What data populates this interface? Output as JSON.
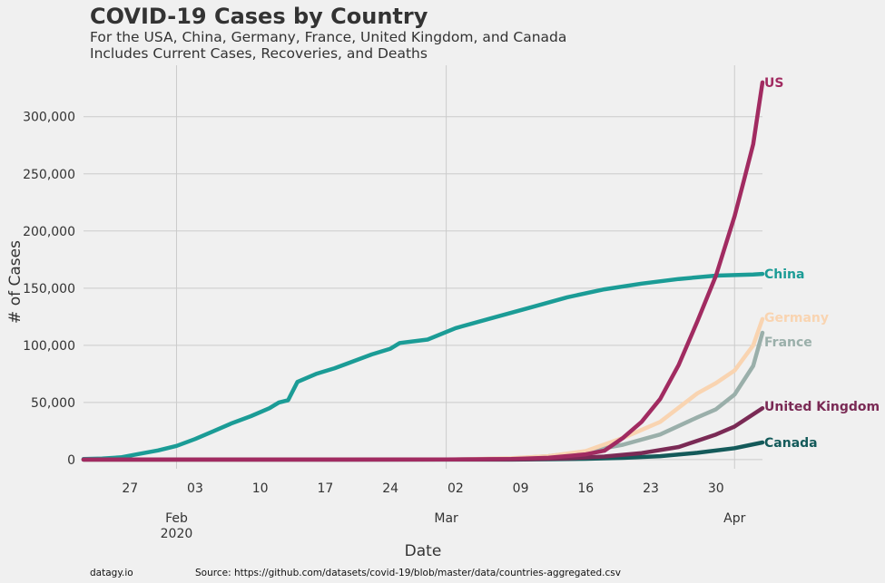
{
  "chart_data": {
    "type": "line",
    "title": "COVID-19 Cases by Country",
    "subtitle": [
      "For the USA, China, Germany, France, United Kingdom, and Canada",
      "Includes Current Cases, Recoveries, and Deaths"
    ],
    "xlabel": "Date",
    "ylabel": "# of Cases",
    "x_range": [
      "2020-01-22",
      "2020-04-04"
    ],
    "ylim": [
      -8000,
      345000
    ],
    "y_ticks": [
      0,
      50000,
      100000,
      150000,
      200000,
      250000,
      300000
    ],
    "y_tick_labels": [
      "0",
      "50,000",
      "100,000",
      "150,000",
      "200,000",
      "250,000",
      "300,000"
    ],
    "x_ticks": [
      {
        "date": "2020-01-27",
        "label": "27"
      },
      {
        "date": "2020-02-03",
        "label": "03"
      },
      {
        "date": "2020-02-10",
        "label": "10"
      },
      {
        "date": "2020-02-17",
        "label": "17"
      },
      {
        "date": "2020-02-24",
        "label": "24"
      },
      {
        "date": "2020-03-02",
        "label": "02"
      },
      {
        "date": "2020-03-09",
        "label": "09"
      },
      {
        "date": "2020-03-16",
        "label": "16"
      },
      {
        "date": "2020-03-23",
        "label": "23"
      },
      {
        "date": "2020-03-30",
        "label": "30"
      }
    ],
    "x_major_ticks": [
      {
        "date": "2020-02-01",
        "label": "Feb",
        "label2": "2020"
      },
      {
        "date": "2020-03-01",
        "label": "Mar",
        "label2": ""
      },
      {
        "date": "2020-04-01",
        "label": "Apr",
        "label2": ""
      }
    ],
    "grid": true,
    "legend": "direct labels at line ends",
    "series": [
      {
        "name": "China",
        "color": "#1b9c96",
        "points": [
          [
            "2020-01-22",
            548
          ],
          [
            "2020-01-24",
            1000
          ],
          [
            "2020-01-26",
            2000
          ],
          [
            "2020-01-28",
            5000
          ],
          [
            "2020-01-30",
            8000
          ],
          [
            "2020-02-01",
            12000
          ],
          [
            "2020-02-03",
            18000
          ],
          [
            "2020-02-05",
            25000
          ],
          [
            "2020-02-07",
            32000
          ],
          [
            "2020-02-09",
            38000
          ],
          [
            "2020-02-11",
            45000
          ],
          [
            "2020-02-12",
            50000
          ],
          [
            "2020-02-13",
            52000
          ],
          [
            "2020-02-14",
            68000
          ],
          [
            "2020-02-16",
            75000
          ],
          [
            "2020-02-18",
            80000
          ],
          [
            "2020-02-20",
            86000
          ],
          [
            "2020-02-22",
            92000
          ],
          [
            "2020-02-24",
            97000
          ],
          [
            "2020-02-25",
            102000
          ],
          [
            "2020-02-28",
            105000
          ],
          [
            "2020-03-02",
            115000
          ],
          [
            "2020-03-06",
            124000
          ],
          [
            "2020-03-10",
            133000
          ],
          [
            "2020-03-14",
            142000
          ],
          [
            "2020-03-18",
            149000
          ],
          [
            "2020-03-22",
            154000
          ],
          [
            "2020-03-26",
            158000
          ],
          [
            "2020-03-30",
            161000
          ],
          [
            "2020-04-03",
            162000
          ],
          [
            "2020-04-04",
            162500
          ]
        ]
      },
      {
        "name": "Canada",
        "color": "#145a5a",
        "points": [
          [
            "2020-01-22",
            0
          ],
          [
            "2020-03-08",
            0
          ],
          [
            "2020-03-12",
            300
          ],
          [
            "2020-03-16",
            700
          ],
          [
            "2020-03-20",
            1500
          ],
          [
            "2020-03-24",
            3000
          ],
          [
            "2020-03-28",
            6000
          ],
          [
            "2020-04-01",
            10000
          ],
          [
            "2020-04-04",
            15000
          ]
        ]
      },
      {
        "name": "France",
        "color": "#9aafaa",
        "points": [
          [
            "2020-01-22",
            0
          ],
          [
            "2020-03-02",
            200
          ],
          [
            "2020-03-08",
            1000
          ],
          [
            "2020-03-12",
            3000
          ],
          [
            "2020-03-16",
            7000
          ],
          [
            "2020-03-20",
            13000
          ],
          [
            "2020-03-24",
            22000
          ],
          [
            "2020-03-28",
            37000
          ],
          [
            "2020-03-30",
            44000
          ],
          [
            "2020-04-01",
            57000
          ],
          [
            "2020-04-03",
            82000
          ],
          [
            "2020-04-04",
            111000
          ]
        ]
      },
      {
        "name": "Germany",
        "color": "#f9d4b1",
        "points": [
          [
            "2020-01-22",
            0
          ],
          [
            "2020-03-02",
            200
          ],
          [
            "2020-03-08",
            1200
          ],
          [
            "2020-03-12",
            3000
          ],
          [
            "2020-03-16",
            7500
          ],
          [
            "2020-03-20",
            19000
          ],
          [
            "2020-03-24",
            33000
          ],
          [
            "2020-03-28",
            58000
          ],
          [
            "2020-03-30",
            67000
          ],
          [
            "2020-04-01",
            78000
          ],
          [
            "2020-04-03",
            100000
          ],
          [
            "2020-04-04",
            123000
          ]
        ]
      },
      {
        "name": "United Kingdom",
        "color": "#7a2a55",
        "points": [
          [
            "2020-01-22",
            0
          ],
          [
            "2020-03-04",
            100
          ],
          [
            "2020-03-10",
            400
          ],
          [
            "2020-03-14",
            1100
          ],
          [
            "2020-03-18",
            2700
          ],
          [
            "2020-03-22",
            5700
          ],
          [
            "2020-03-26",
            11000
          ],
          [
            "2020-03-30",
            22000
          ],
          [
            "2020-04-01",
            29000
          ],
          [
            "2020-04-04",
            45000
          ]
        ]
      },
      {
        "name": "US",
        "color": "#a12b61",
        "points": [
          [
            "2020-01-22",
            1
          ],
          [
            "2020-03-01",
            100
          ],
          [
            "2020-03-08",
            500
          ],
          [
            "2020-03-12",
            1600
          ],
          [
            "2020-03-16",
            4600
          ],
          [
            "2020-03-18",
            7800
          ],
          [
            "2020-03-20",
            19000
          ],
          [
            "2020-03-22",
            33000
          ],
          [
            "2020-03-24",
            53000
          ],
          [
            "2020-03-26",
            83000
          ],
          [
            "2020-03-28",
            121000
          ],
          [
            "2020-03-30",
            161000
          ],
          [
            "2020-04-01",
            213000
          ],
          [
            "2020-04-02",
            244000
          ],
          [
            "2020-04-03",
            276000
          ],
          [
            "2020-04-04",
            330000
          ]
        ]
      }
    ]
  },
  "footer": {
    "left": "datagy.io",
    "source": "Source: https://github.com/datasets/covid-19/blob/master/data/countries-aggregated.csv"
  }
}
